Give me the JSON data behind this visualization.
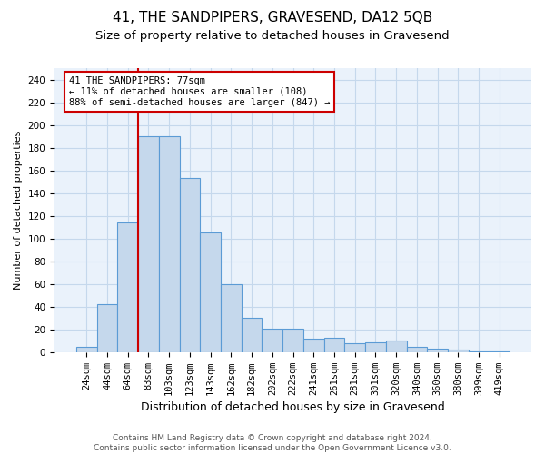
{
  "title": "41, THE SANDPIPERS, GRAVESEND, DA12 5QB",
  "subtitle": "Size of property relative to detached houses in Gravesend",
  "xlabel": "Distribution of detached houses by size in Gravesend",
  "ylabel": "Number of detached properties",
  "bar_labels": [
    "24sqm",
    "44sqm",
    "64sqm",
    "83sqm",
    "103sqm",
    "123sqm",
    "143sqm",
    "162sqm",
    "182sqm",
    "202sqm",
    "222sqm",
    "241sqm",
    "261sqm",
    "281sqm",
    "301sqm",
    "320sqm",
    "340sqm",
    "360sqm",
    "380sqm",
    "399sqm",
    "419sqm"
  ],
  "bar_values": [
    5,
    42,
    114,
    190,
    190,
    153,
    105,
    60,
    30,
    21,
    21,
    12,
    13,
    8,
    9,
    10,
    5,
    3,
    2,
    1,
    1
  ],
  "bar_color": "#c5d8ec",
  "bar_edge_color": "#5b9bd5",
  "grid_color": "#c5d8ec",
  "background_color": "#eaf2fb",
  "vline_color": "#cc0000",
  "annotation_text": "41 THE SANDPIPERS: 77sqm\n← 11% of detached houses are smaller (108)\n88% of semi-detached houses are larger (847) →",
  "annotation_box_color": "#ffffff",
  "annotation_box_edge_color": "#cc0000",
  "ylim": [
    0,
    250
  ],
  "yticks": [
    0,
    20,
    40,
    60,
    80,
    100,
    120,
    140,
    160,
    180,
    200,
    220,
    240
  ],
  "footer_line1": "Contains HM Land Registry data © Crown copyright and database right 2024.",
  "footer_line2": "Contains public sector information licensed under the Open Government Licence v3.0.",
  "title_fontsize": 11,
  "subtitle_fontsize": 9.5,
  "xlabel_fontsize": 9,
  "ylabel_fontsize": 8,
  "tick_fontsize": 7.5,
  "annotation_fontsize": 7.5,
  "footer_fontsize": 6.5
}
